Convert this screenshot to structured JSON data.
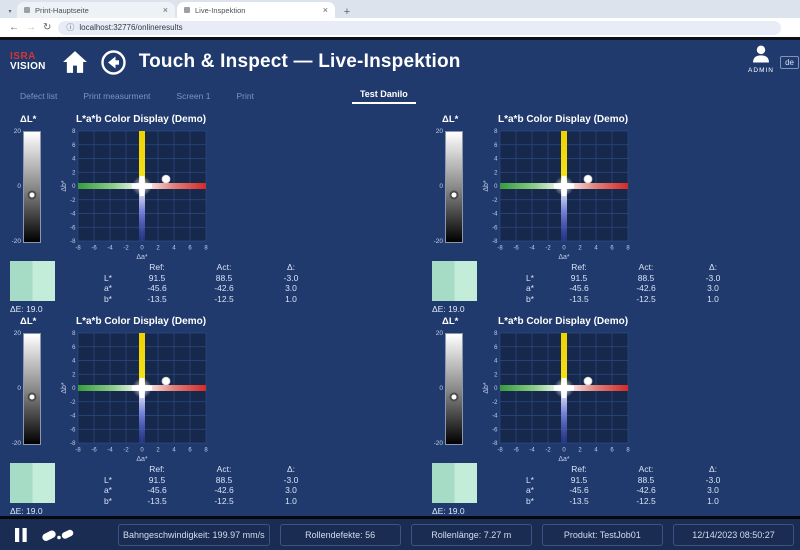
{
  "browser": {
    "tabs": [
      {
        "title": "Print-Hauptseite"
      },
      {
        "title": "Live-Inspektion"
      }
    ],
    "url": "localhost:32776/onlineresults"
  },
  "icons": {
    "tab_caret": "▾",
    "close_tab": "×",
    "new_tab": "+",
    "back": "←",
    "forward": "→",
    "refresh": "↻",
    "site_info": "ⓘ"
  },
  "header": {
    "logo_top": "ISRA",
    "logo_bottom": "VISION",
    "title": "Touch & Inspect — Live-Inspektion",
    "user_label": "ADMIN",
    "language_label": "de"
  },
  "nav": {
    "items": [
      {
        "label": "Defect list",
        "active": false
      },
      {
        "label": "Print measurment",
        "active": false
      },
      {
        "label": "Screen 1",
        "active": false
      },
      {
        "label": "Print",
        "active": false
      },
      {
        "label": "Test Danilo",
        "active": true
      }
    ]
  },
  "chart_data": [
    {
      "type": "scatter",
      "title": "L*a*b Color Display (Demo)",
      "xlabel": "Δa*",
      "ylabel": "Δb*",
      "xlim": [
        -8,
        8
      ],
      "ylim": [
        -8,
        8
      ],
      "tick_step": 2,
      "points": [
        {
          "x": 3,
          "y": 1
        }
      ],
      "axis_colors": {
        "up": "#eed200",
        "down": "#3340b5",
        "left": "#379b3e",
        "right": "#d42a26"
      },
      "plot_bg": "#16284c",
      "grid_color": "#2d4a80",
      "dl_bar": {
        "label": "ΔL*",
        "max_label": "20",
        "zero_label": "0",
        "min_label": "-20",
        "range": [
          -20,
          20
        ],
        "value": -3
      },
      "swatch": {
        "left_color": "#a6dcc6",
        "right_color": "#c3ecd9",
        "delta_e_label": "ΔE: 19.0"
      },
      "table": {
        "col_headers": [
          "Ref:",
          "Act:",
          "Δ:"
        ],
        "rows": [
          {
            "label": "L*",
            "ref": "91.5",
            "act": "88.5",
            "delta": "-3.0"
          },
          {
            "label": "a*",
            "ref": "-45.6",
            "act": "-42.6",
            "delta": "3.0"
          },
          {
            "label": "b*",
            "ref": "-13.5",
            "act": "-12.5",
            "delta": "1.0"
          }
        ]
      }
    },
    {
      "type": "scatter",
      "title": "L*a*b Color Display (Demo)",
      "xlabel": "Δa*",
      "ylabel": "Δb*",
      "xlim": [
        -8,
        8
      ],
      "ylim": [
        -8,
        8
      ],
      "tick_step": 2,
      "points": [
        {
          "x": 3,
          "y": 1
        }
      ],
      "axis_colors": {
        "up": "#eed200",
        "down": "#3340b5",
        "left": "#379b3e",
        "right": "#d42a26"
      },
      "plot_bg": "#16284c",
      "grid_color": "#2d4a80",
      "dl_bar": {
        "label": "ΔL*",
        "max_label": "20",
        "zero_label": "0",
        "min_label": "-20",
        "range": [
          -20,
          20
        ],
        "value": -3
      },
      "swatch": {
        "left_color": "#a6dcc6",
        "right_color": "#c3ecd9",
        "delta_e_label": "ΔE: 19.0"
      },
      "table": {
        "col_headers": [
          "Ref:",
          "Act:",
          "Δ:"
        ],
        "rows": [
          {
            "label": "L*",
            "ref": "91.5",
            "act": "88.5",
            "delta": "-3.0"
          },
          {
            "label": "a*",
            "ref": "-45.6",
            "act": "-42.6",
            "delta": "3.0"
          },
          {
            "label": "b*",
            "ref": "-13.5",
            "act": "-12.5",
            "delta": "1.0"
          }
        ]
      }
    },
    {
      "type": "scatter",
      "title": "L*a*b Color Display (Demo)",
      "xlabel": "Δa*",
      "ylabel": "Δb*",
      "xlim": [
        -8,
        8
      ],
      "ylim": [
        -8,
        8
      ],
      "tick_step": 2,
      "points": [
        {
          "x": 3,
          "y": 1
        }
      ],
      "axis_colors": {
        "up": "#eed200",
        "down": "#3340b5",
        "left": "#379b3e",
        "right": "#d42a26"
      },
      "plot_bg": "#16284c",
      "grid_color": "#2d4a80",
      "dl_bar": {
        "label": "ΔL*",
        "max_label": "20",
        "zero_label": "0",
        "min_label": "-20",
        "range": [
          -20,
          20
        ],
        "value": -3
      },
      "swatch": {
        "left_color": "#a6dcc6",
        "right_color": "#c3ecd9",
        "delta_e_label": "ΔE: 19.0"
      },
      "table": {
        "col_headers": [
          "Ref:",
          "Act:",
          "Δ:"
        ],
        "rows": [
          {
            "label": "L*",
            "ref": "91.5",
            "act": "88.5",
            "delta": "-3.0"
          },
          {
            "label": "a*",
            "ref": "-45.6",
            "act": "-42.6",
            "delta": "3.0"
          },
          {
            "label": "b*",
            "ref": "-13.5",
            "act": "-12.5",
            "delta": "1.0"
          }
        ]
      }
    },
    {
      "type": "scatter",
      "title": "L*a*b Color Display (Demo)",
      "xlabel": "Δa*",
      "ylabel": "Δb*",
      "xlim": [
        -8,
        8
      ],
      "ylim": [
        -8,
        8
      ],
      "tick_step": 2,
      "points": [
        {
          "x": 3,
          "y": 1
        }
      ],
      "axis_colors": {
        "up": "#eed200",
        "down": "#3340b5",
        "left": "#379b3e",
        "right": "#d42a26"
      },
      "plot_bg": "#16284c",
      "grid_color": "#2d4a80",
      "dl_bar": {
        "label": "ΔL*",
        "max_label": "20",
        "zero_label": "0",
        "min_label": "-20",
        "range": [
          -20,
          20
        ],
        "value": -3
      },
      "swatch": {
        "left_color": "#a6dcc6",
        "right_color": "#c3ecd9",
        "delta_e_label": "ΔE: 19.0"
      },
      "table": {
        "col_headers": [
          "Ref:",
          "Act:",
          "Δ:"
        ],
        "rows": [
          {
            "label": "L*",
            "ref": "91.5",
            "act": "88.5",
            "delta": "-3.0"
          },
          {
            "label": "a*",
            "ref": "-45.6",
            "act": "-42.6",
            "delta": "3.0"
          },
          {
            "label": "b*",
            "ref": "-13.5",
            "act": "-12.5",
            "delta": "1.0"
          }
        ]
      }
    }
  ],
  "status_bar": {
    "items": [
      "Bahngeschwindigkeit: 199.97 mm/s",
      "Rollendefekte: 56",
      "Rollenlänge: 7.27 m",
      "Produkt: TestJob01",
      "12/14/2023 08:50:27"
    ]
  }
}
